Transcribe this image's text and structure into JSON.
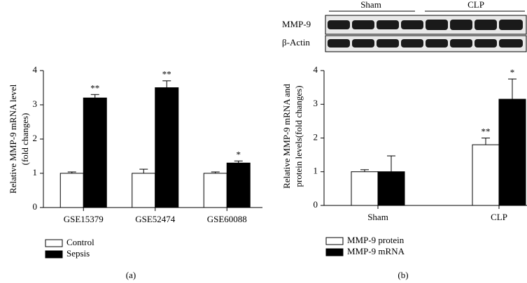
{
  "chart_data": [
    {
      "type": "bar",
      "ylabel": [
        "Relative MMP-9 mRNA level",
        "(fold changes)"
      ],
      "categories": [
        "GSE15379",
        "GSE52474",
        "GSE60088"
      ],
      "series": [
        {
          "name": "Control",
          "color": "#ffffff",
          "values": [
            1.0,
            1.0,
            1.0
          ],
          "errors": [
            0.04,
            0.12,
            0.04
          ],
          "significance": [
            null,
            null,
            null
          ]
        },
        {
          "name": "Sepsis",
          "color": "#000000",
          "values": [
            3.2,
            3.5,
            1.3
          ],
          "errors": [
            0.1,
            0.2,
            0.06
          ],
          "significance": [
            "**",
            "**",
            "*"
          ]
        }
      ],
      "ylim": [
        0,
        4
      ],
      "yticks": [
        0,
        1,
        2,
        3,
        4
      ],
      "panel_label": "(a)"
    },
    {
      "type": "bar",
      "ylabel": [
        "Relative MMP-9 mRNA and",
        "protein levels(fold changes)"
      ],
      "categories": [
        "Sham",
        "CLP"
      ],
      "series": [
        {
          "name": "MMP-9 protein",
          "color": "#ffffff",
          "values": [
            1.0,
            1.8
          ],
          "errors": [
            0.06,
            0.2
          ],
          "significance": [
            null,
            "**"
          ]
        },
        {
          "name": "MMP-9 mRNA",
          "color": "#000000",
          "values": [
            1.0,
            3.15
          ],
          "errors": [
            0.47,
            0.6
          ],
          "significance": [
            null,
            "*"
          ]
        }
      ],
      "ylim": [
        0,
        4
      ],
      "yticks": [
        0,
        1,
        2,
        3,
        4
      ],
      "panel_label": "(b)",
      "blot": {
        "groups": [
          "Sham",
          "CLP"
        ],
        "rows": [
          "MMP-9",
          "β-Actin"
        ]
      }
    }
  ]
}
